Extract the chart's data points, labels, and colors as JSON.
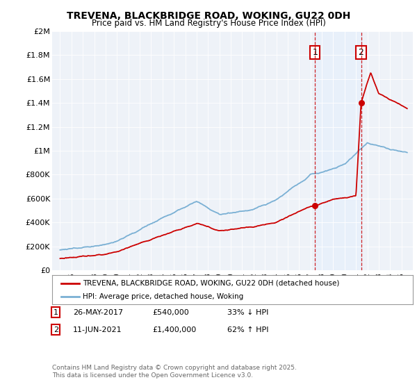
{
  "title": "TREVENA, BLACKBRIDGE ROAD, WOKING, GU22 0DH",
  "subtitle": "Price paid vs. HM Land Registry's House Price Index (HPI)",
  "ylabel_ticks": [
    "£0",
    "£200K",
    "£400K",
    "£600K",
    "£800K",
    "£1M",
    "£1.2M",
    "£1.4M",
    "£1.6M",
    "£1.8M",
    "£2M"
  ],
  "ytick_values": [
    0,
    200000,
    400000,
    600000,
    800000,
    1000000,
    1200000,
    1400000,
    1600000,
    1800000,
    2000000
  ],
  "ylim": [
    0,
    2000000
  ],
  "year_start": 1995,
  "year_end": 2025,
  "line1_color": "#cc0000",
  "line2_color": "#7ab0d4",
  "shaded_color": "#ddeeff",
  "marker1_date": 2017.4,
  "marker1_value": 540000,
  "marker2_date": 2021.45,
  "marker2_value": 1400000,
  "legend_label1": "TREVENA, BLACKBRIDGE ROAD, WOKING, GU22 0DH (detached house)",
  "legend_label2": "HPI: Average price, detached house, Woking",
  "footer": "Contains HM Land Registry data © Crown copyright and database right 2025.\nThis data is licensed under the Open Government Licence v3.0.",
  "background_color": "#ffffff",
  "plot_bg_color": "#eef2f8"
}
